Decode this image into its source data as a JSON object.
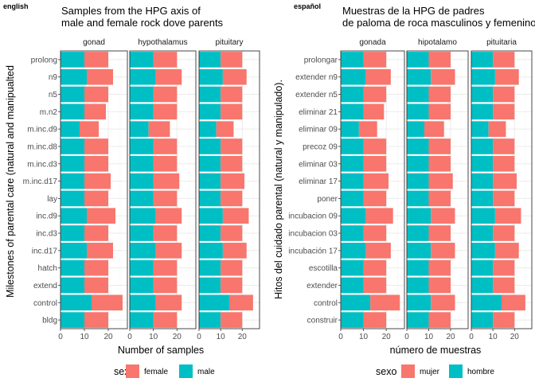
{
  "colors": {
    "female": "#F8766D",
    "male": "#00BFC4"
  },
  "chart_data": [
    {
      "type": "bar",
      "orientation": "horizontal",
      "stacked": true,
      "tag": "english",
      "title_line1": "Samples from the HPG axis of",
      "title_line2": "male and female rock dove parents",
      "xlabel": "Number of samples",
      "ylabel": "Milestones of parental care (natural and manipualted",
      "xlim": [
        0,
        28
      ],
      "xticks": [
        "0",
        "10",
        "20"
      ],
      "legend_title": "sex",
      "legend_position": "bottom",
      "series": [
        {
          "name": "female",
          "color": "#F8766D"
        },
        {
          "name": "male",
          "color": "#00BFC4"
        }
      ],
      "facets": [
        "gonad",
        "hypothalamus",
        "pituitary"
      ],
      "categories": [
        "prolong",
        "n9",
        "n5",
        "m.n2",
        "m.inc.d9",
        "m.inc.d8",
        "m.inc.d3",
        "m.inc.d17",
        "lay",
        "inc.d9",
        "inc.d3",
        "inc.d17",
        "hatch",
        "extend",
        "control",
        "bldg"
      ],
      "values": {
        "gonad": {
          "male": [
            10,
            11,
            10,
            10,
            8,
            10,
            10,
            10,
            10,
            11,
            10,
            11,
            10,
            10,
            13,
            10
          ],
          "female": [
            10,
            11,
            10,
            9,
            8,
            10,
            10,
            11,
            10,
            12,
            10,
            11,
            10,
            10,
            13,
            10
          ]
        },
        "hypothalamus": {
          "male": [
            10,
            11,
            10,
            10,
            8,
            10,
            10,
            10,
            10,
            11,
            10,
            11,
            10,
            10,
            11,
            10
          ],
          "female": [
            10,
            11,
            10,
            10,
            9,
            10,
            10,
            11,
            10,
            11,
            10,
            11,
            10,
            10,
            11,
            10
          ]
        },
        "pituitary": {
          "male": [
            10,
            11,
            10,
            10,
            8,
            10,
            10,
            10,
            10,
            11,
            10,
            11,
            10,
            10,
            14,
            10
          ],
          "female": [
            10,
            11,
            10,
            10,
            8,
            10,
            10,
            11,
            10,
            12,
            10,
            11,
            10,
            10,
            11,
            10
          ]
        }
      }
    },
    {
      "type": "bar",
      "orientation": "horizontal",
      "stacked": true,
      "tag": "español",
      "title_line1": "Muestras de la HPG de padres",
      "title_line2": "de paloma de roca masculinos y femeninos",
      "xlabel": "número de muestras",
      "ylabel": "Hitos del cuidado parental (natural y manipulado).",
      "xlim": [
        0,
        28
      ],
      "xticks": [
        "0",
        "10",
        "20"
      ],
      "legend_title": "sexo",
      "legend_position": "bottom",
      "series": [
        {
          "name": "mujer",
          "color": "#F8766D"
        },
        {
          "name": "hombre",
          "color": "#00BFC4"
        }
      ],
      "facets": [
        "gonada",
        "hipotalamo",
        "pituitaria"
      ],
      "categories": [
        "prolongar",
        "extender n9",
        "extender n5",
        "eliminar 21",
        "eliminar 09",
        "precoz 09",
        "eliminar 03",
        "eliminar 17",
        "poner",
        "incubacion 09",
        "incubacion 03",
        "incubación 17",
        "escotilla",
        "extender",
        "control",
        "construir"
      ],
      "values": {
        "gonada": {
          "male": [
            10,
            11,
            10,
            10,
            8,
            10,
            10,
            10,
            10,
            11,
            10,
            11,
            10,
            10,
            13,
            10
          ],
          "female": [
            10,
            11,
            10,
            9,
            8,
            10,
            10,
            11,
            10,
            12,
            10,
            11,
            10,
            10,
            13,
            10
          ]
        },
        "hipotalamo": {
          "male": [
            10,
            11,
            10,
            10,
            8,
            10,
            10,
            10,
            10,
            11,
            10,
            11,
            10,
            10,
            11,
            10
          ],
          "female": [
            10,
            11,
            10,
            10,
            9,
            10,
            10,
            11,
            10,
            11,
            10,
            11,
            10,
            10,
            11,
            10
          ]
        },
        "pituitaria": {
          "male": [
            10,
            11,
            10,
            10,
            8,
            10,
            10,
            10,
            10,
            11,
            10,
            11,
            10,
            10,
            14,
            10
          ],
          "female": [
            10,
            11,
            10,
            10,
            8,
            10,
            10,
            11,
            10,
            12,
            10,
            11,
            10,
            10,
            11,
            10
          ]
        }
      }
    }
  ]
}
